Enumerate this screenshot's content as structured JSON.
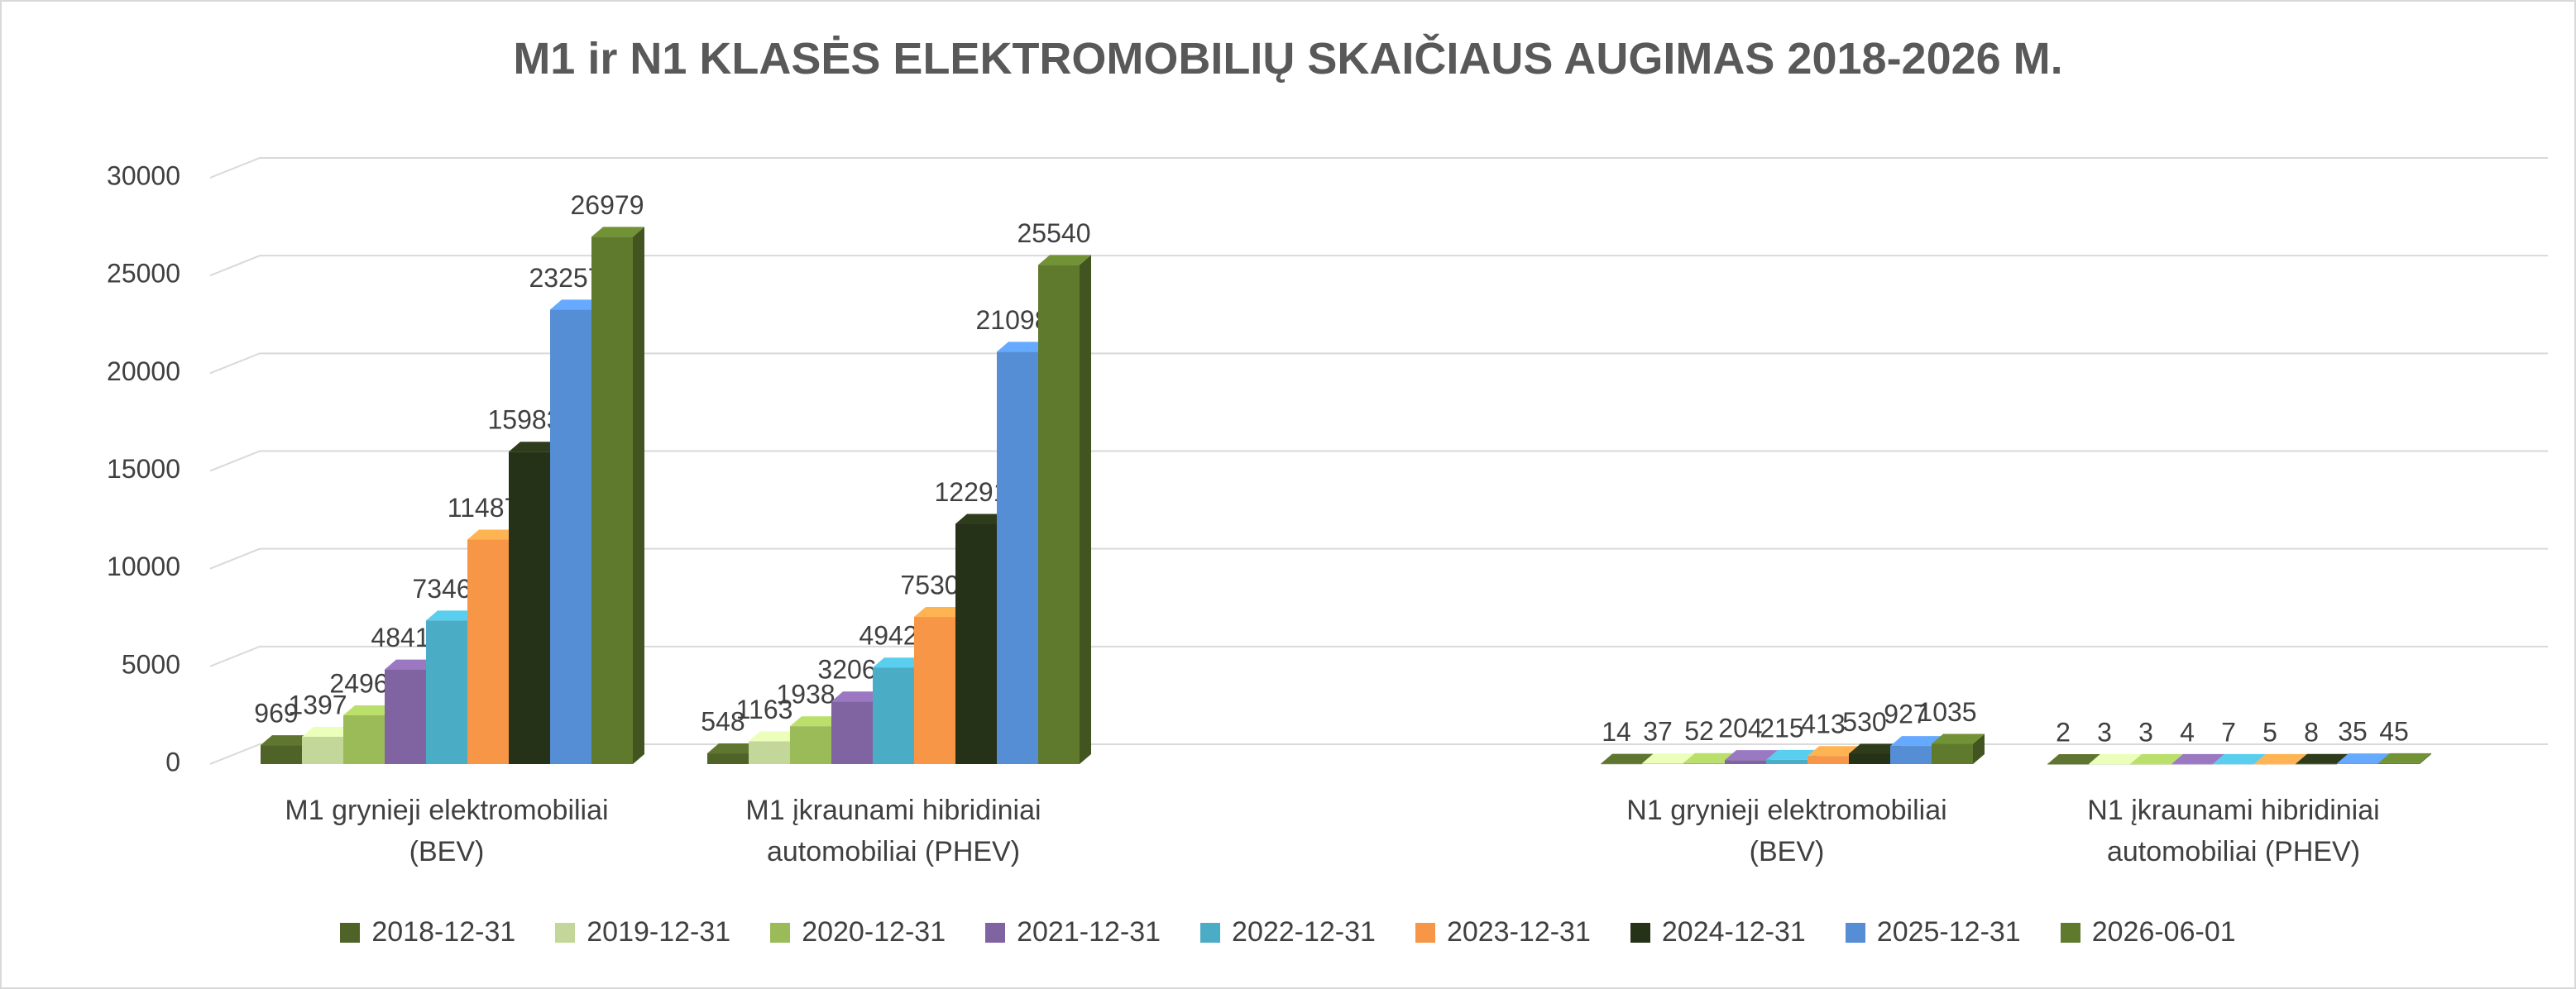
{
  "chart_data": {
    "type": "bar3d",
    "title": "M1 ir N1 KLASĖS ELEKTROMOBILIŲ SKAIČIAUS AUGIMAS 2018-2026 M.",
    "categories": [
      "M1 grynieji elektromobiliai (BEV)",
      "M1 įkraunami hibridiniai automobiliai (PHEV)",
      null,
      "N1 grynieji elektromobiliai (BEV)",
      "N1 įkraunami hibridiniai automobiliai (PHEV)"
    ],
    "series": [
      {
        "name": "2018-12-31",
        "color": "#4f6228",
        "values": [
          969,
          548,
          null,
          14,
          2
        ]
      },
      {
        "name": "2019-12-31",
        "color": "#c4d79b",
        "values": [
          1397,
          1163,
          null,
          37,
          3
        ]
      },
      {
        "name": "2020-12-31",
        "color": "#9bbb59",
        "values": [
          2496,
          1938,
          null,
          52,
          3
        ]
      },
      {
        "name": "2021-12-31",
        "color": "#8064a2",
        "values": [
          4841,
          3206,
          null,
          204,
          4
        ]
      },
      {
        "name": "2022-12-31",
        "color": "#4bacc6",
        "values": [
          7346,
          4942,
          null,
          215,
          7
        ]
      },
      {
        "name": "2023-12-31",
        "color": "#f79646",
        "values": [
          11487,
          7530,
          null,
          413,
          5
        ]
      },
      {
        "name": "2024-12-31",
        "color": "#263217",
        "values": [
          15983,
          12291,
          null,
          530,
          8
        ]
      },
      {
        "name": "2025-12-31",
        "color": "#558ed5",
        "values": [
          23257,
          21098,
          null,
          927,
          35
        ]
      },
      {
        "name": "2026-06-01",
        "color": "#5f7a2d",
        "values": [
          26979,
          25540,
          null,
          1035,
          45
        ]
      }
    ],
    "ylim": [
      0,
      30000
    ],
    "yticks": [
      0,
      5000,
      10000,
      15000,
      20000,
      25000,
      30000
    ],
    "grid": true,
    "legend": "bottom"
  }
}
